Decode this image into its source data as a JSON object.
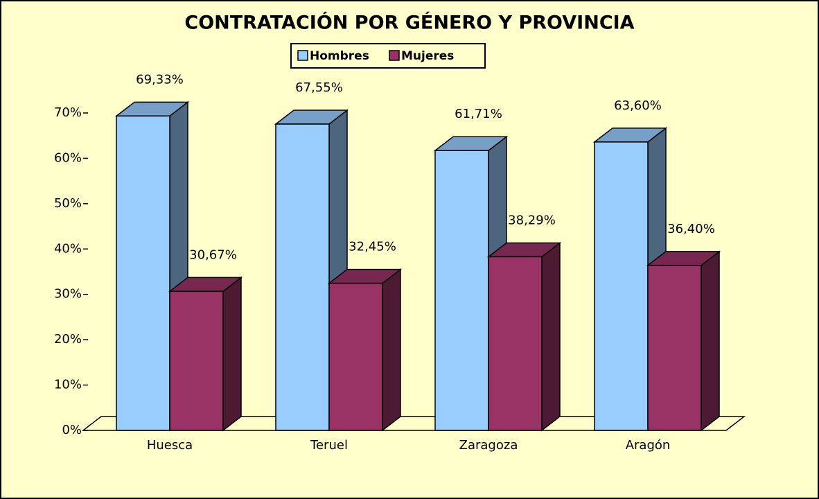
{
  "chart_data": {
    "type": "bar",
    "title": "CONTRATACIÓN POR GÉNERO Y PROVINCIA",
    "categories": [
      "Huesca",
      "Teruel",
      "Zaragoza",
      "Aragón"
    ],
    "series": [
      {
        "name": "Hombres",
        "color": "#99CCFF",
        "values": [
          69.33,
          67.55,
          61.71,
          63.6
        ],
        "value_labels": [
          "69,33%",
          "67,55%",
          "61,71%",
          "63,60%"
        ]
      },
      {
        "name": "Mujeres",
        "color": "#993366",
        "values": [
          30.67,
          32.45,
          38.29,
          36.4
        ],
        "value_labels": [
          "30,67%",
          "32,45%",
          "38,29%",
          "36,40%"
        ]
      }
    ],
    "ylim": [
      0,
      70
    ],
    "yticks": [
      {
        "value": 0,
        "label": "0%"
      },
      {
        "value": 10,
        "label": "10%"
      },
      {
        "value": 20,
        "label": "20%"
      },
      {
        "value": 30,
        "label": "30%"
      },
      {
        "value": 40,
        "label": "40%"
      },
      {
        "value": 50,
        "label": "50%"
      },
      {
        "value": 60,
        "label": "60%"
      },
      {
        "value": 70,
        "label": "70%"
      }
    ],
    "legend": "top"
  }
}
